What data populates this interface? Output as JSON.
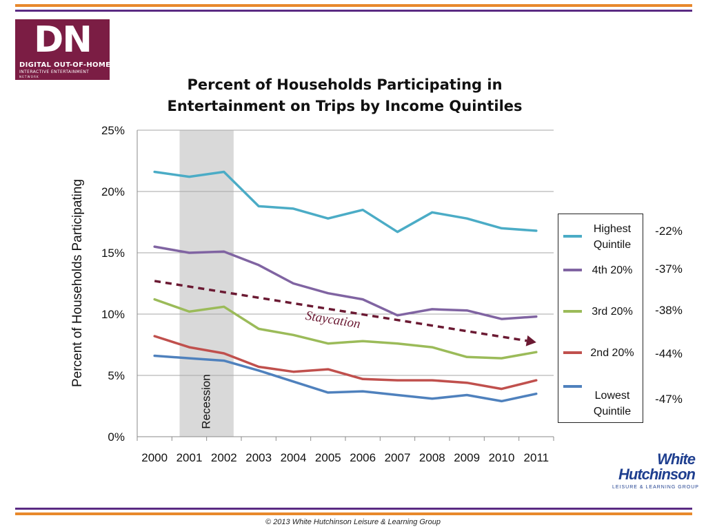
{
  "header": {
    "logo_text": "DN",
    "logo_line1": "DIGITAL OUT-OF-HOME",
    "logo_line2": "INTERACTIVE ENTERTAINMENT",
    "logo_line3": "NETWORK"
  },
  "branding": {
    "company_line1": "White",
    "company_line2": "Hutchinson",
    "company_line3": "LEISURE & LEARNING GROUP"
  },
  "footer": {
    "copyright": "© 2013 White Hutchinson Leisure & Learning Group"
  },
  "colors": {
    "highest": "#4bacc6",
    "fourth": "#8064a2",
    "third": "#9bbb59",
    "second": "#c0504d",
    "lowest": "#4f81bd",
    "trend": "#6b1a33",
    "recession": "#d9d9d9",
    "orange_rule": "#e8892c",
    "purple_rule": "#5a2a83"
  },
  "chart_data": {
    "type": "line",
    "title": [
      "Percent of Households Participating in",
      "Entertainment on Trips by Income Quintiles"
    ],
    "ylabel": "Percent of Households Participating",
    "xlabel": "",
    "categories": [
      "2000",
      "2001",
      "2002",
      "2003",
      "2004",
      "2005",
      "2006",
      "2007",
      "2008",
      "2009",
      "2010",
      "2011"
    ],
    "ylim": [
      0,
      25
    ],
    "yticks": [
      "0%",
      "5%",
      "10%",
      "15%",
      "20%",
      "25%"
    ],
    "grid": true,
    "legend_position": "right",
    "series": [
      {
        "name": "Highest Quintile",
        "key": "highest",
        "change": "-22%",
        "values": [
          21.6,
          21.2,
          21.6,
          18.8,
          18.6,
          17.8,
          18.5,
          16.7,
          18.3,
          17.8,
          17.0,
          16.8
        ]
      },
      {
        "name": "4th 20%",
        "key": "fourth",
        "change": "-37%",
        "values": [
          15.5,
          15.0,
          15.1,
          14.0,
          12.5,
          11.7,
          11.2,
          9.9,
          10.4,
          10.3,
          9.6,
          9.8
        ]
      },
      {
        "name": "3rd 20%",
        "key": "third",
        "change": "-38%",
        "values": [
          11.2,
          10.2,
          10.6,
          8.8,
          8.3,
          7.6,
          7.8,
          7.6,
          7.3,
          6.5,
          6.4,
          6.9
        ]
      },
      {
        "name": "2nd 20%",
        "key": "second",
        "change": "-44%",
        "values": [
          8.2,
          7.3,
          6.8,
          5.7,
          5.3,
          5.5,
          4.7,
          4.6,
          4.6,
          4.4,
          3.9,
          4.6
        ]
      },
      {
        "name": "Lowest Quintile",
        "key": "lowest",
        "change": "-47%",
        "values": [
          6.6,
          6.4,
          6.2,
          5.4,
          4.5,
          3.6,
          3.7,
          3.4,
          3.1,
          3.4,
          2.9,
          3.5
        ]
      }
    ],
    "annotations": {
      "recession_label": "Recession",
      "recession_span": [
        "2001",
        "2002"
      ],
      "trend_label": "Staycation",
      "trend_from": {
        "x": "2000",
        "y": 12.7
      },
      "trend_to": {
        "x": "2011",
        "y": 7.7
      }
    }
  }
}
